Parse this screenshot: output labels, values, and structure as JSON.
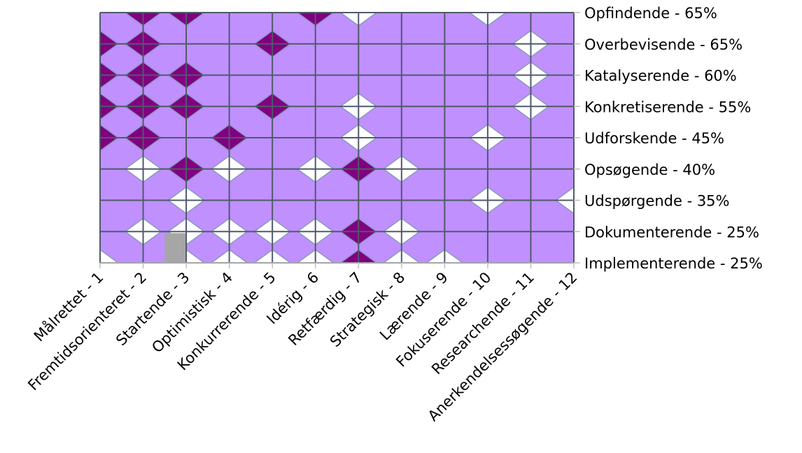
{
  "chart_data": {
    "type": "heatmap",
    "subtype": "contour",
    "title": "",
    "xlabel": "",
    "ylabel": "",
    "x_categories": [
      "Målrettet - 1",
      "Fremtidsorienteret - 2",
      "Startende - 3",
      "Optimistisk - 4",
      "Konkurrerende - 5",
      "Idérig - 6",
      "Retfærdig - 7",
      "Strategisk - 8",
      "Lærende - 9",
      "Fokuserende - 10",
      "Researchende - 11",
      "Anerkendelsessøgende - 12"
    ],
    "y_categories": [
      "Implementerende - 25%",
      "Dokumenterende - 25%",
      "Udspørgende - 35%",
      "Opsøgende - 40%",
      "Udforskende - 45%",
      "Konkretiserende - 55%",
      "Katalyserende - 60%",
      "Overbevisende - 65%",
      "Opfindende - 65%"
    ],
    "y_axis_side": "right",
    "grid": true,
    "colors": {
      "low": "#ffffff",
      "base": "#c090ff",
      "high": "#800080",
      "missing": "#a6a6a6",
      "grid": "#4f5a6b",
      "contour": "#8899bb"
    },
    "levels": [
      {
        "name": "low",
        "color": "#ffffff"
      },
      {
        "name": "base",
        "color": "#c090ff"
      },
      {
        "name": "high",
        "color": "#800080"
      }
    ],
    "cell_levels": [
      [
        0,
        1,
        0,
        0,
        0,
        0,
        2,
        0,
        0,
        1,
        1,
        1
      ],
      [
        1,
        0,
        0,
        0,
        0,
        0,
        2,
        0,
        1,
        1,
        1,
        1
      ],
      [
        1,
        1,
        0,
        1,
        1,
        1,
        1,
        1,
        1,
        0,
        1,
        0
      ],
      [
        1,
        0,
        2,
        0,
        1,
        0,
        2,
        0,
        1,
        1,
        1,
        1
      ],
      [
        2,
        2,
        1,
        2,
        1,
        1,
        0,
        1,
        1,
        0,
        1,
        1
      ],
      [
        2,
        2,
        2,
        1,
        2,
        1,
        0,
        1,
        1,
        1,
        0,
        1
      ],
      [
        2,
        2,
        2,
        1,
        1,
        1,
        1,
        1,
        1,
        1,
        0,
        1
      ],
      [
        2,
        2,
        1,
        1,
        2,
        1,
        1,
        1,
        1,
        1,
        0,
        1
      ],
      [
        1,
        2,
        2,
        1,
        1,
        2,
        0,
        1,
        1,
        0,
        1,
        1
      ]
    ]
  }
}
